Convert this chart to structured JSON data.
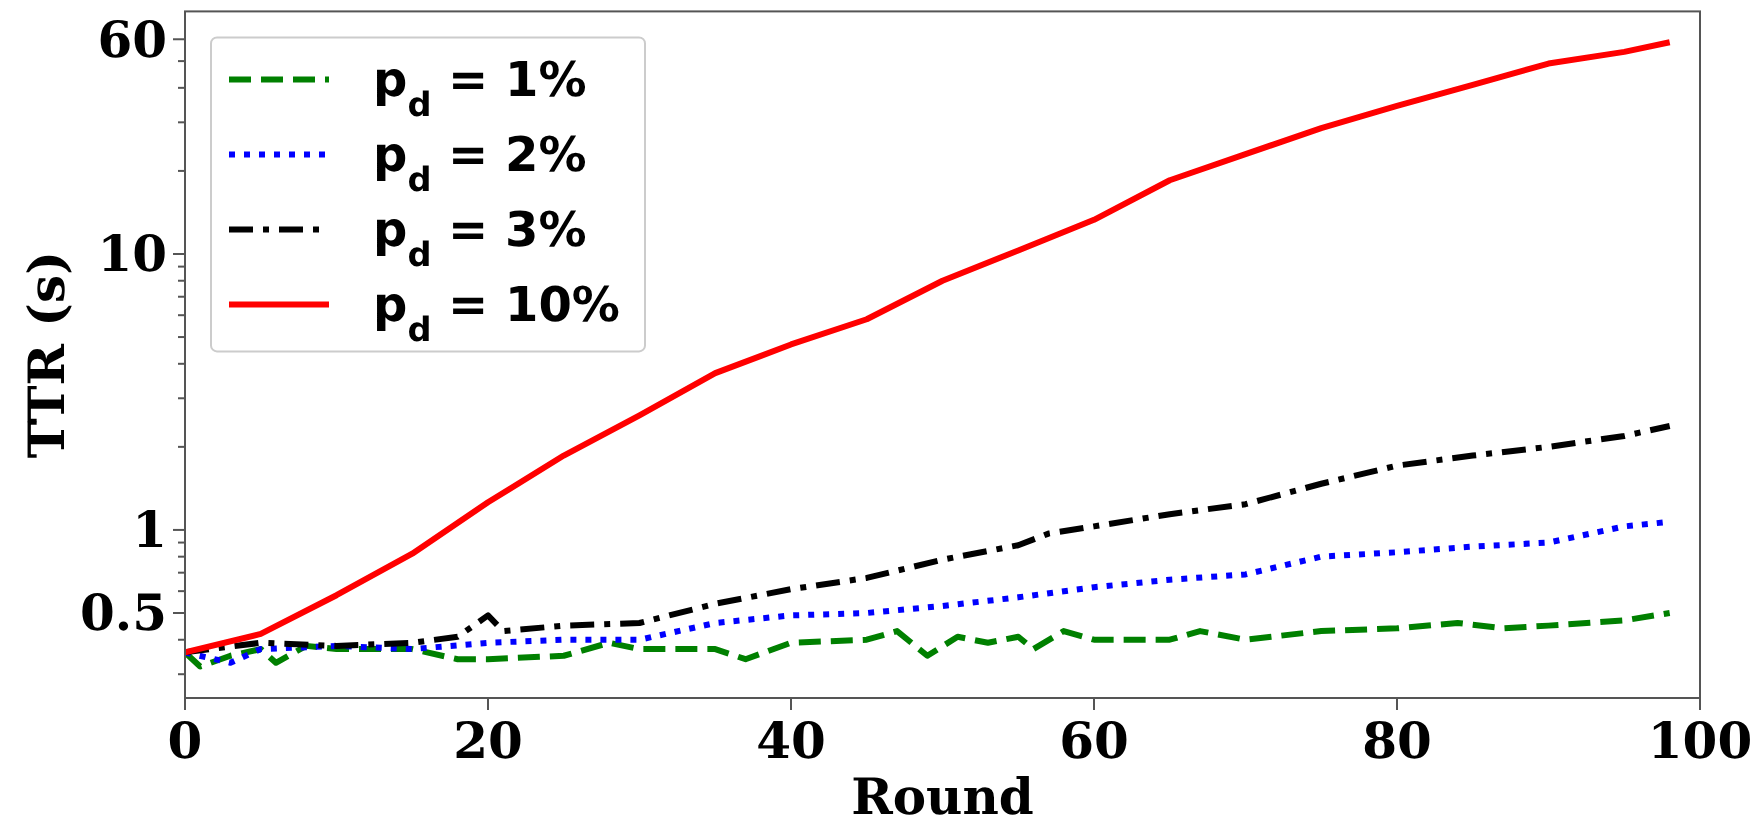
{
  "chart_data": {
    "type": "line",
    "xlabel": "Round",
    "ylabel": "TTR (s)",
    "log": "y",
    "legend": "top left",
    "xlim": [
      0,
      100
    ],
    "xticks": [
      0,
      20,
      40,
      60,
      80,
      100
    ],
    "ylim": [
      0.246,
      75.7
    ],
    "yticks": [
      {
        "value": 0.3,
        "label": null
      },
      {
        "value": 0.4,
        "label": null
      },
      0.5,
      {
        "value": 0.6,
        "label": null
      },
      {
        "value": 0.7,
        "label": null
      },
      {
        "value": 0.8,
        "label": null
      },
      {
        "value": 0.9,
        "label": null
      },
      1,
      {
        "value": 2,
        "label": null
      },
      {
        "value": 3,
        "label": null
      },
      {
        "value": 4,
        "label": null
      },
      {
        "value": 5,
        "label": null
      },
      {
        "value": 6,
        "label": null
      },
      {
        "value": 7,
        "label": null
      },
      {
        "value": 8,
        "label": null
      },
      {
        "value": 9,
        "label": null
      },
      10,
      {
        "value": 20,
        "label": null
      },
      {
        "value": 30,
        "label": null
      },
      {
        "value": 40,
        "label": null
      },
      {
        "value": 50,
        "label": null
      },
      60
    ],
    "series": [
      {
        "name": "p$_{d}$ = 1%",
        "color": "#008000",
        "line_style": "dashed",
        "x": [
          0,
          1,
          3,
          5,
          6,
          8,
          10,
          15,
          18,
          20,
          25,
          28,
          30,
          35,
          37,
          40,
          45,
          47,
          49,
          51,
          53,
          55,
          56,
          58,
          60,
          65,
          67,
          70,
          75,
          80,
          84,
          87,
          90,
          95,
          98
        ],
        "values": [
          0.36,
          0.32,
          0.35,
          0.37,
          0.33,
          0.38,
          0.37,
          0.37,
          0.34,
          0.34,
          0.35,
          0.39,
          0.37,
          0.37,
          0.34,
          0.39,
          0.4,
          0.43,
          0.35,
          0.41,
          0.39,
          0.41,
          0.37,
          0.43,
          0.4,
          0.4,
          0.43,
          0.4,
          0.43,
          0.44,
          0.46,
          0.44,
          0.45,
          0.47,
          0.5
        ]
      },
      {
        "name": "p$_{d}$ = 2%",
        "color": "#0000ff",
        "line_style": "dotted",
        "x": [
          0,
          3,
          5,
          10,
          15,
          20,
          25,
          30,
          35,
          40,
          45,
          50,
          55,
          60,
          65,
          70,
          75,
          80,
          85,
          90,
          95,
          98
        ],
        "values": [
          0.36,
          0.33,
          0.37,
          0.38,
          0.37,
          0.39,
          0.4,
          0.4,
          0.46,
          0.49,
          0.5,
          0.53,
          0.57,
          0.62,
          0.66,
          0.69,
          0.8,
          0.83,
          0.87,
          0.9,
          1.03,
          1.07
        ]
      },
      {
        "name": "p$_{d}$ = 3%",
        "color": "#000000",
        "line_style": "dashdot",
        "x": [
          0,
          5,
          10,
          15,
          18,
          20,
          21,
          25,
          30,
          35,
          40,
          45,
          50,
          55,
          57,
          60,
          65,
          70,
          75,
          80,
          85,
          90,
          95,
          98
        ],
        "values": [
          0.36,
          0.39,
          0.38,
          0.39,
          0.41,
          0.49,
          0.43,
          0.45,
          0.46,
          0.54,
          0.61,
          0.67,
          0.78,
          0.88,
          0.97,
          1.03,
          1.14,
          1.24,
          1.47,
          1.71,
          1.86,
          2.0,
          2.19,
          2.38
        ]
      },
      {
        "name": "p$_{d}$ = 10%",
        "color": "#ff0000",
        "line_style": "solid",
        "x": [
          0,
          5,
          10,
          15,
          20,
          25,
          30,
          35,
          40,
          45,
          50,
          55,
          60,
          65,
          70,
          75,
          80,
          85,
          90,
          95,
          98
        ],
        "values": [
          0.36,
          0.42,
          0.58,
          0.82,
          1.26,
          1.86,
          2.6,
          3.7,
          4.7,
          5.8,
          8.0,
          10.3,
          13.3,
          18.5,
          23,
          28.6,
          34.4,
          41,
          49,
          54,
          58.5
        ]
      }
    ]
  }
}
